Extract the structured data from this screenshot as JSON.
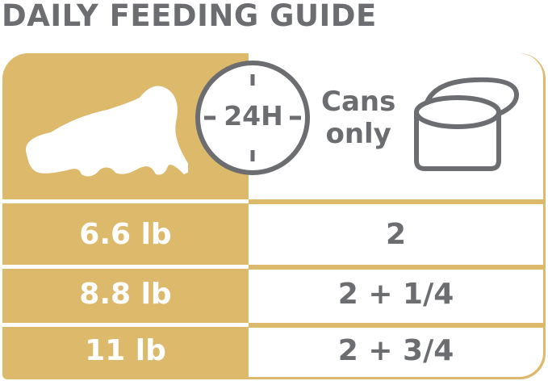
{
  "title": "DAILY FEEDING GUIDE",
  "header": {
    "cat_icon": "cat-silhouette-icon",
    "clock_label": "24H",
    "cans_line1": "Cans",
    "cans_line2": "only",
    "can_icon": "open-can-icon"
  },
  "rows": [
    {
      "weight": "6.6 lb",
      "cans": "2"
    },
    {
      "weight": "8.8 lb",
      "cans": "2 + 1/4"
    },
    {
      "weight": "11 lb",
      "cans": "2 + 3/4"
    }
  ],
  "colors": {
    "gold": "#dcb96b",
    "gray": "#6b6d70"
  }
}
